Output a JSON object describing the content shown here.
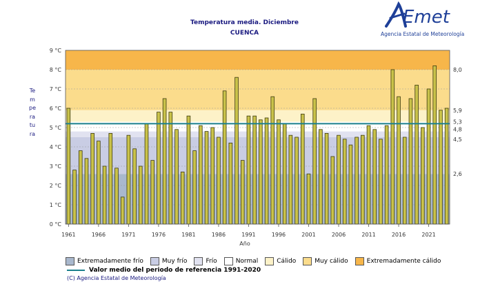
{
  "logo": {
    "text": "AEmet",
    "subtitle": "Agencia Estatal de Meteorología"
  },
  "chart_data": {
    "type": "bar",
    "title": "Temperatura media. Diciembre",
    "subtitle": "CUENCA",
    "ylabel": "Temperatura",
    "xlabel": "Año",
    "ylim": [
      0,
      9
    ],
    "y_ticks": [
      "0 °C",
      "1 °C",
      "2 °C",
      "3 °C",
      "4 °C",
      "5 °C",
      "6 °C",
      "7 °C",
      "8 °C",
      "9 °C"
    ],
    "x_ticks": [
      1961,
      1966,
      1971,
      1976,
      1981,
      1986,
      1991,
      1996,
      2001,
      2006,
      2011,
      2016,
      2021
    ],
    "x": [
      1961,
      1962,
      1963,
      1964,
      1965,
      1966,
      1967,
      1968,
      1969,
      1970,
      1971,
      1972,
      1973,
      1974,
      1975,
      1976,
      1977,
      1978,
      1979,
      1980,
      1981,
      1982,
      1983,
      1984,
      1985,
      1986,
      1987,
      1988,
      1989,
      1990,
      1991,
      1992,
      1993,
      1994,
      1995,
      1996,
      1997,
      1998,
      1999,
      2000,
      2001,
      2002,
      2003,
      2004,
      2005,
      2006,
      2007,
      2008,
      2009,
      2010,
      2011,
      2012,
      2013,
      2014,
      2015,
      2016,
      2017,
      2018,
      2019,
      2020,
      2021,
      2022,
      2023,
      2024
    ],
    "values": [
      6.0,
      2.8,
      3.8,
      3.4,
      4.7,
      4.3,
      3.0,
      4.7,
      2.9,
      1.4,
      4.6,
      3.9,
      3.0,
      5.2,
      3.3,
      5.8,
      6.5,
      5.8,
      4.9,
      2.7,
      5.6,
      3.8,
      5.1,
      4.8,
      5.0,
      4.5,
      6.9,
      4.2,
      7.6,
      3.3,
      5.6,
      5.6,
      5.4,
      5.5,
      6.6,
      5.4,
      5.2,
      4.6,
      4.5,
      5.7,
      2.6,
      6.5,
      4.9,
      4.7,
      3.5,
      4.6,
      4.4,
      4.1,
      4.5,
      4.6,
      5.1,
      4.9,
      4.4,
      5.1,
      8.0,
      6.6,
      4.5,
      6.5,
      7.2,
      5.0,
      7.0,
      8.2,
      5.9,
      6.0
    ],
    "reference_value": 5.2,
    "threshold_labels": [
      "8,0",
      "5,9",
      "5,3",
      "4,8",
      "4,5",
      "2,6"
    ],
    "threshold_values": [
      8.0,
      5.9,
      5.3,
      4.8,
      4.5,
      2.6
    ],
    "bands": [
      {
        "name": "Extremadamente frío",
        "from": 0,
        "to": 2.6,
        "color": "#a9b8cd"
      },
      {
        "name": "Muy frío",
        "from": 2.6,
        "to": 4.5,
        "color": "#c9cde4"
      },
      {
        "name": "Frío",
        "from": 4.5,
        "to": 4.8,
        "color": "#e1e2f0"
      },
      {
        "name": "Normal",
        "from": 4.8,
        "to": 5.3,
        "color": "#ffffff"
      },
      {
        "name": "Cálido",
        "from": 5.3,
        "to": 5.9,
        "color": "#fdf2c8"
      },
      {
        "name": "Muy cálido",
        "from": 5.9,
        "to": 8.0,
        "color": "#fbdc8c"
      },
      {
        "name": "Extremadamente cálido",
        "from": 8.0,
        "to": 9.0,
        "color": "#f7b64a"
      }
    ],
    "bar_color": "#c9c24a",
    "reference_color": "#1a7f8c",
    "grid": true
  },
  "legend": {
    "items": [
      {
        "label": "Extremadamente frío",
        "color": "#a9b8cd"
      },
      {
        "label": "Muy frío",
        "color": "#c9cde4"
      },
      {
        "label": "Frío",
        "color": "#e1e2f0"
      },
      {
        "label": "Normal",
        "color": "#ffffff"
      },
      {
        "label": "Cálido",
        "color": "#fdf2c8"
      },
      {
        "label": "Muy cálido",
        "color": "#fbdc8c"
      },
      {
        "label": "Extremadamente cálido",
        "color": "#f7b64a"
      }
    ],
    "reference_label": "Valor medio del periodo de referencia 1991-2020"
  },
  "copyright": "(C) Agencia Estatal de Meteorología"
}
